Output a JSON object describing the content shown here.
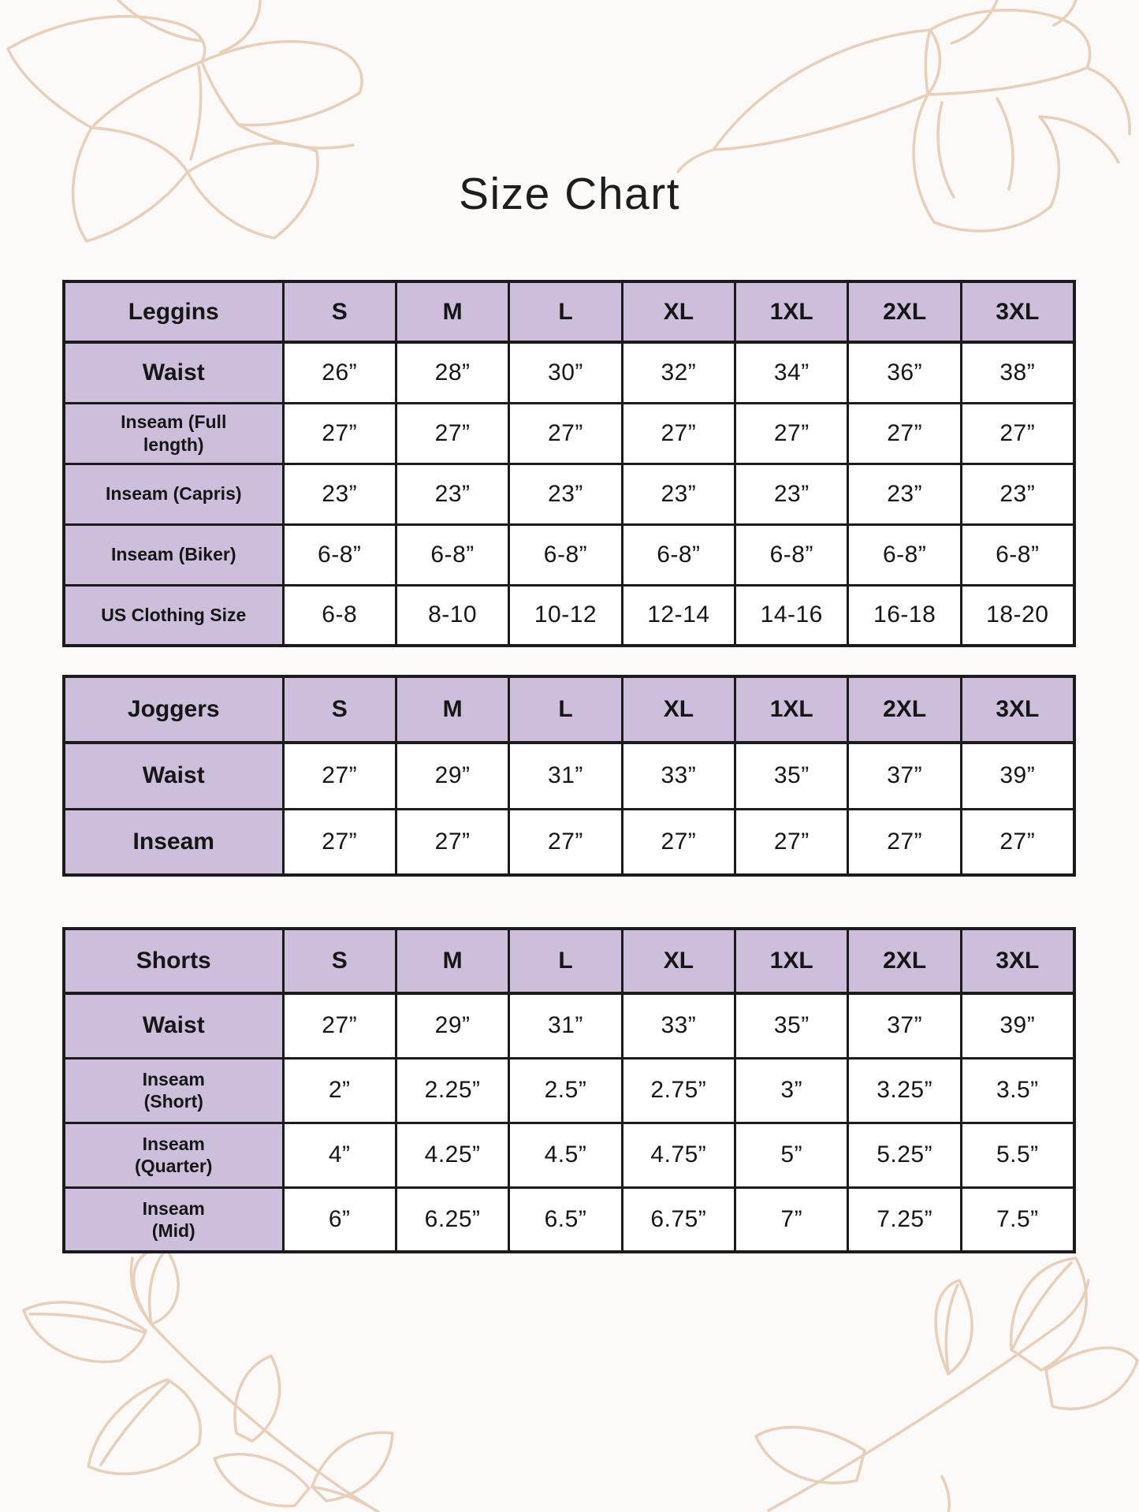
{
  "title": "Size Chart",
  "colors": {
    "header_fill": "#cdbfdc",
    "table_border": "#1b1b1b",
    "background": "#fbfaf8",
    "floral_line": "#e7cfba",
    "text": "#161616"
  },
  "tables": [
    {
      "id": "leggins",
      "group_label": "Leggins",
      "columns": [
        "S",
        "M",
        "L",
        "XL",
        "1XL",
        "2XL",
        "3XL"
      ],
      "rows": [
        {
          "label": "Waist",
          "label_lines": [
            "Waist"
          ],
          "label_size": "lg",
          "values": [
            "26”",
            "28”",
            "30”",
            "32”",
            "34”",
            "36”",
            "38”"
          ]
        },
        {
          "label": "Inseam (Full length)",
          "label_lines": [
            "Inseam (Full",
            "length)"
          ],
          "label_size": "sm",
          "values": [
            "27”",
            "27”",
            "27”",
            "27”",
            "27”",
            "27”",
            "27”"
          ]
        },
        {
          "label": "Inseam (Capris)",
          "label_lines": [
            "Inseam (Capris)"
          ],
          "label_size": "sm",
          "values": [
            "23”",
            "23”",
            "23”",
            "23”",
            "23”",
            "23”",
            "23”"
          ]
        },
        {
          "label": "Inseam (Biker)",
          "label_lines": [
            "Inseam (Biker)"
          ],
          "label_size": "sm",
          "values": [
            "6-8”",
            "6-8”",
            "6-8”",
            "6-8”",
            "6-8”",
            "6-8”",
            "6-8”"
          ]
        },
        {
          "label": "US Clothing Size",
          "label_lines": [
            "US Clothing Size"
          ],
          "label_size": "sm",
          "values": [
            "6-8",
            "8-10",
            "10-12",
            "12-14",
            "14-16",
            "16-18",
            "18-20"
          ]
        }
      ]
    },
    {
      "id": "joggers",
      "group_label": "Joggers",
      "columns": [
        "S",
        "M",
        "L",
        "XL",
        "1XL",
        "2XL",
        "3XL"
      ],
      "rows": [
        {
          "label": "Waist",
          "label_lines": [
            "Waist"
          ],
          "label_size": "lg",
          "values": [
            "27”",
            "29”",
            "31”",
            "33”",
            "35”",
            "37”",
            "39”"
          ]
        },
        {
          "label": "Inseam",
          "label_lines": [
            "Inseam"
          ],
          "label_size": "lg",
          "values": [
            "27”",
            "27”",
            "27”",
            "27”",
            "27”",
            "27”",
            "27”"
          ]
        }
      ]
    },
    {
      "id": "shorts",
      "group_label": "Shorts",
      "columns": [
        "S",
        "M",
        "L",
        "XL",
        "1XL",
        "2XL",
        "3XL"
      ],
      "rows": [
        {
          "label": "Waist",
          "label_lines": [
            "Waist"
          ],
          "label_size": "lg",
          "values": [
            "27”",
            "29”",
            "31”",
            "33”",
            "35”",
            "37”",
            "39”"
          ]
        },
        {
          "label": "Inseam (Short)",
          "label_lines": [
            "Inseam",
            "(Short)"
          ],
          "label_size": "sm",
          "values": [
            "2”",
            "2.25”",
            "2.5”",
            "2.75”",
            "3”",
            "3.25”",
            "3.5”"
          ]
        },
        {
          "label": "Inseam (Quarter)",
          "label_lines": [
            "Inseam",
            "(Quarter)"
          ],
          "label_size": "sm",
          "values": [
            "4”",
            "4.25”",
            "4.5”",
            "4.75”",
            "5”",
            "5.25”",
            "5.5”"
          ]
        },
        {
          "label": "Inseam (Mid)",
          "label_lines": [
            "Inseam",
            "(Mid)"
          ],
          "label_size": "sm",
          "values": [
            "6”",
            "6.25”",
            "6.5”",
            "6.75”",
            "7”",
            "7.25”",
            "7.5”"
          ]
        }
      ]
    }
  ]
}
